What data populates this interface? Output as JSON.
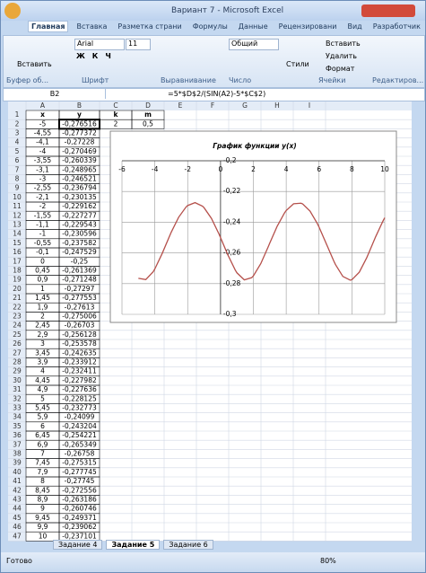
{
  "window": {
    "title": "Вариант 7 - Microsoft Excel"
  },
  "ribbon": {
    "tabs": [
      "Главная",
      "Вставка",
      "Разметка страни",
      "Формулы",
      "Данные",
      "Рецензировани",
      "Вид",
      "Разработчик"
    ],
    "paste": "Вставить",
    "font": "Arial",
    "size": "11",
    "font_buttons": [
      "Ж",
      "К",
      "Ч"
    ],
    "number_format": "Общий",
    "styles": "Стили",
    "insert": "Вставить",
    "delete": "Удалить",
    "format": "Формат",
    "groups": [
      "Буфер об...",
      "Шрифт",
      "Выравнивание",
      "Число",
      "Ячейки",
      "Редактиров..."
    ]
  },
  "formula_bar": {
    "name_box": "B2",
    "formula": "=5*$D$2/(SIN(A2)-5*$C$2)"
  },
  "sheet": {
    "columns": [
      "A",
      "B",
      "C",
      "D",
      "E",
      "F",
      "G",
      "H",
      "I"
    ],
    "row_numbers": [
      1,
      2,
      3,
      4,
      5,
      6,
      7,
      8,
      9,
      10,
      11,
      12,
      13,
      14,
      15,
      16,
      17,
      18,
      19,
      20,
      21,
      22,
      23,
      24,
      25,
      26,
      27,
      28,
      29,
      30,
      31,
      32,
      33,
      34,
      35,
      36,
      37,
      38,
      39,
      40,
      41,
      42,
      43,
      44,
      45,
      46,
      47
    ],
    "rows": [
      [
        "x",
        "y",
        "k",
        "m"
      ],
      [
        "-5",
        "-0,276516",
        "2",
        "0,5"
      ],
      [
        "-4,55",
        "-0,277372"
      ],
      [
        "-4,1",
        "-0,27228"
      ],
      [
        "-4",
        "-0,270469"
      ],
      [
        "-3,55",
        "-0,260339"
      ],
      [
        "-3,1",
        "-0,248965"
      ],
      [
        "-3",
        "-0,246521"
      ],
      [
        "-2,55",
        "-0,236794"
      ],
      [
        "-2,1",
        "-0,230135"
      ],
      [
        "-2",
        "-0,229162"
      ],
      [
        "-1,55",
        "-0,227277"
      ],
      [
        "-1,1",
        "-0,229543"
      ],
      [
        "-1",
        "-0,230596"
      ],
      [
        "-0,55",
        "-0,237582"
      ],
      [
        "-0,1",
        "-0,247529"
      ],
      [
        "0",
        "-0,25"
      ],
      [
        "0,45",
        "-0,261369"
      ],
      [
        "0,9",
        "-0,271248"
      ],
      [
        "1",
        "-0,27297"
      ],
      [
        "1,45",
        "-0,277553"
      ],
      [
        "1,9",
        "-0,27613"
      ],
      [
        "2",
        "-0,275006"
      ],
      [
        "2,45",
        "-0,26703"
      ],
      [
        "2,9",
        "-0,256128"
      ],
      [
        "3",
        "-0,253578"
      ],
      [
        "3,45",
        "-0,242635"
      ],
      [
        "3,9",
        "-0,233912"
      ],
      [
        "4",
        "-0,232411"
      ],
      [
        "4,45",
        "-0,227982"
      ],
      [
        "4,9",
        "-0,227636"
      ],
      [
        "5",
        "-0,228125"
      ],
      [
        "5,45",
        "-0,232773"
      ],
      [
        "5,9",
        "-0,24099"
      ],
      [
        "6",
        "-0,243204"
      ],
      [
        "6,45",
        "-0,254221"
      ],
      [
        "6,9",
        "-0,265349"
      ],
      [
        "7",
        "-0,26758"
      ],
      [
        "7,45",
        "-0,275315"
      ],
      [
        "7,9",
        "-0,277745"
      ],
      [
        "8",
        "-0,27745"
      ],
      [
        "8,45",
        "-0,272556"
      ],
      [
        "8,9",
        "-0,263186"
      ],
      [
        "9",
        "-0,260746"
      ],
      [
        "9,45",
        "-0,249371"
      ],
      [
        "9,9",
        "-0,239062"
      ],
      [
        "10",
        "-0,237101"
      ]
    ]
  },
  "chart_data": {
    "type": "line",
    "title": "График функции y(x)",
    "x": [
      -5,
      -4.55,
      -4.1,
      -4,
      -3.55,
      -3.1,
      -3,
      -2.55,
      -2.1,
      -2,
      -1.55,
      -1.1,
      -1,
      -0.55,
      -0.1,
      0,
      0.45,
      0.9,
      1,
      1.45,
      1.9,
      2,
      2.45,
      2.9,
      3,
      3.45,
      3.9,
      4,
      4.45,
      4.9,
      5,
      5.45,
      5.9,
      6,
      6.45,
      6.9,
      7,
      7.45,
      7.9,
      8,
      8.45,
      8.9,
      9,
      9.45,
      9.9,
      10
    ],
    "series": [
      {
        "color": "#b5504b",
        "values": [
          -0.276516,
          -0.277372,
          -0.27228,
          -0.270469,
          -0.260339,
          -0.248965,
          -0.246521,
          -0.236794,
          -0.230135,
          -0.229162,
          -0.227277,
          -0.229543,
          -0.230596,
          -0.237582,
          -0.247529,
          -0.25,
          -0.261369,
          -0.271248,
          -0.27297,
          -0.277553,
          -0.27613,
          -0.275006,
          -0.26703,
          -0.256128,
          -0.253578,
          -0.242635,
          -0.233912,
          -0.232411,
          -0.227982,
          -0.227636,
          -0.228125,
          -0.232773,
          -0.24099,
          -0.243204,
          -0.254221,
          -0.265349,
          -0.26758,
          -0.275315,
          -0.277745,
          -0.27745,
          -0.272556,
          -0.263186,
          -0.260746,
          -0.249371,
          -0.239062,
          -0.237101
        ]
      }
    ],
    "xlim": [
      -6,
      10
    ],
    "xticks": [
      -6,
      -4,
      -2,
      0,
      2,
      4,
      6,
      8,
      10
    ],
    "ylim": [
      -0.3,
      -0.2
    ],
    "yticks": [
      {
        "value": -0.2,
        "label": "-0,2"
      },
      {
        "value": -0.22,
        "label": "-0,22"
      },
      {
        "value": -0.24,
        "label": "-0,24"
      },
      {
        "value": -0.26,
        "label": "-0,26"
      },
      {
        "value": -0.28,
        "label": "-0,28"
      },
      {
        "value": -0.3,
        "label": "-0,3"
      }
    ],
    "grid": true
  },
  "tabs": [
    "Задание 4",
    "Задание 5",
    "Задание 6"
  ],
  "status": {
    "ready": "Готово",
    "zoom": "80%"
  }
}
